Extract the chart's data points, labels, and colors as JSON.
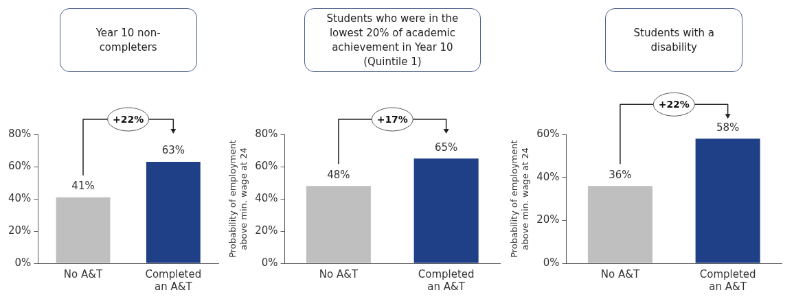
{
  "chart_data": [
    {
      "type": "bar",
      "title": "Year 10 non-completers",
      "categories": [
        "No A&T",
        "Completed an A&T"
      ],
      "values": [
        41,
        63
      ],
      "colors": [
        "#bfbfbf",
        "#1f3f87"
      ],
      "value_labels": [
        "41%",
        "63%"
      ],
      "ylim": [
        0,
        80
      ],
      "yticks": [
        {
          "value": 0,
          "label": "0%"
        },
        {
          "value": 20,
          "label": "20%"
        },
        {
          "value": 40,
          "label": "40%"
        },
        {
          "value": 60,
          "label": "60%"
        },
        {
          "value": 80,
          "label": "80%"
        }
      ],
      "annotations": [
        "+22%"
      ],
      "legend": false,
      "grid": false
    },
    {
      "type": "bar",
      "title": "Students who were in the lowest 20% of academic achievement in Year 10 (Quintile 1)",
      "ylabel": "Probability of employment above min. wage at 24",
      "categories": [
        "No A&T",
        "Completed an A&T"
      ],
      "values": [
        48,
        65
      ],
      "colors": [
        "#bfbfbf",
        "#1f3f87"
      ],
      "value_labels": [
        "48%",
        "65%"
      ],
      "ylim": [
        0,
        80
      ],
      "yticks": [
        {
          "value": 0,
          "label": "0%"
        },
        {
          "value": 20,
          "label": "20%"
        },
        {
          "value": 40,
          "label": "40%"
        },
        {
          "value": 60,
          "label": "60%"
        },
        {
          "value": 80,
          "label": "80%"
        }
      ],
      "annotations": [
        "+17%"
      ],
      "legend": false,
      "grid": false
    },
    {
      "type": "bar",
      "title": "Students with a disability",
      "ylabel": "Probability of employment above min. wage at 24",
      "categories": [
        "No A&T",
        "Completed an A&T"
      ],
      "values": [
        36,
        58
      ],
      "colors": [
        "#bfbfbf",
        "#1f3f87"
      ],
      "value_labels": [
        "36%",
        "58%"
      ],
      "ylim": [
        0,
        60
      ],
      "yticks": [
        {
          "value": 0,
          "label": "0%"
        },
        {
          "value": 20,
          "label": "20%"
        },
        {
          "value": 40,
          "label": "40%"
        },
        {
          "value": 60,
          "label": "60%"
        }
      ],
      "annotations": [
        "+22%"
      ],
      "legend": false,
      "grid": false
    }
  ]
}
